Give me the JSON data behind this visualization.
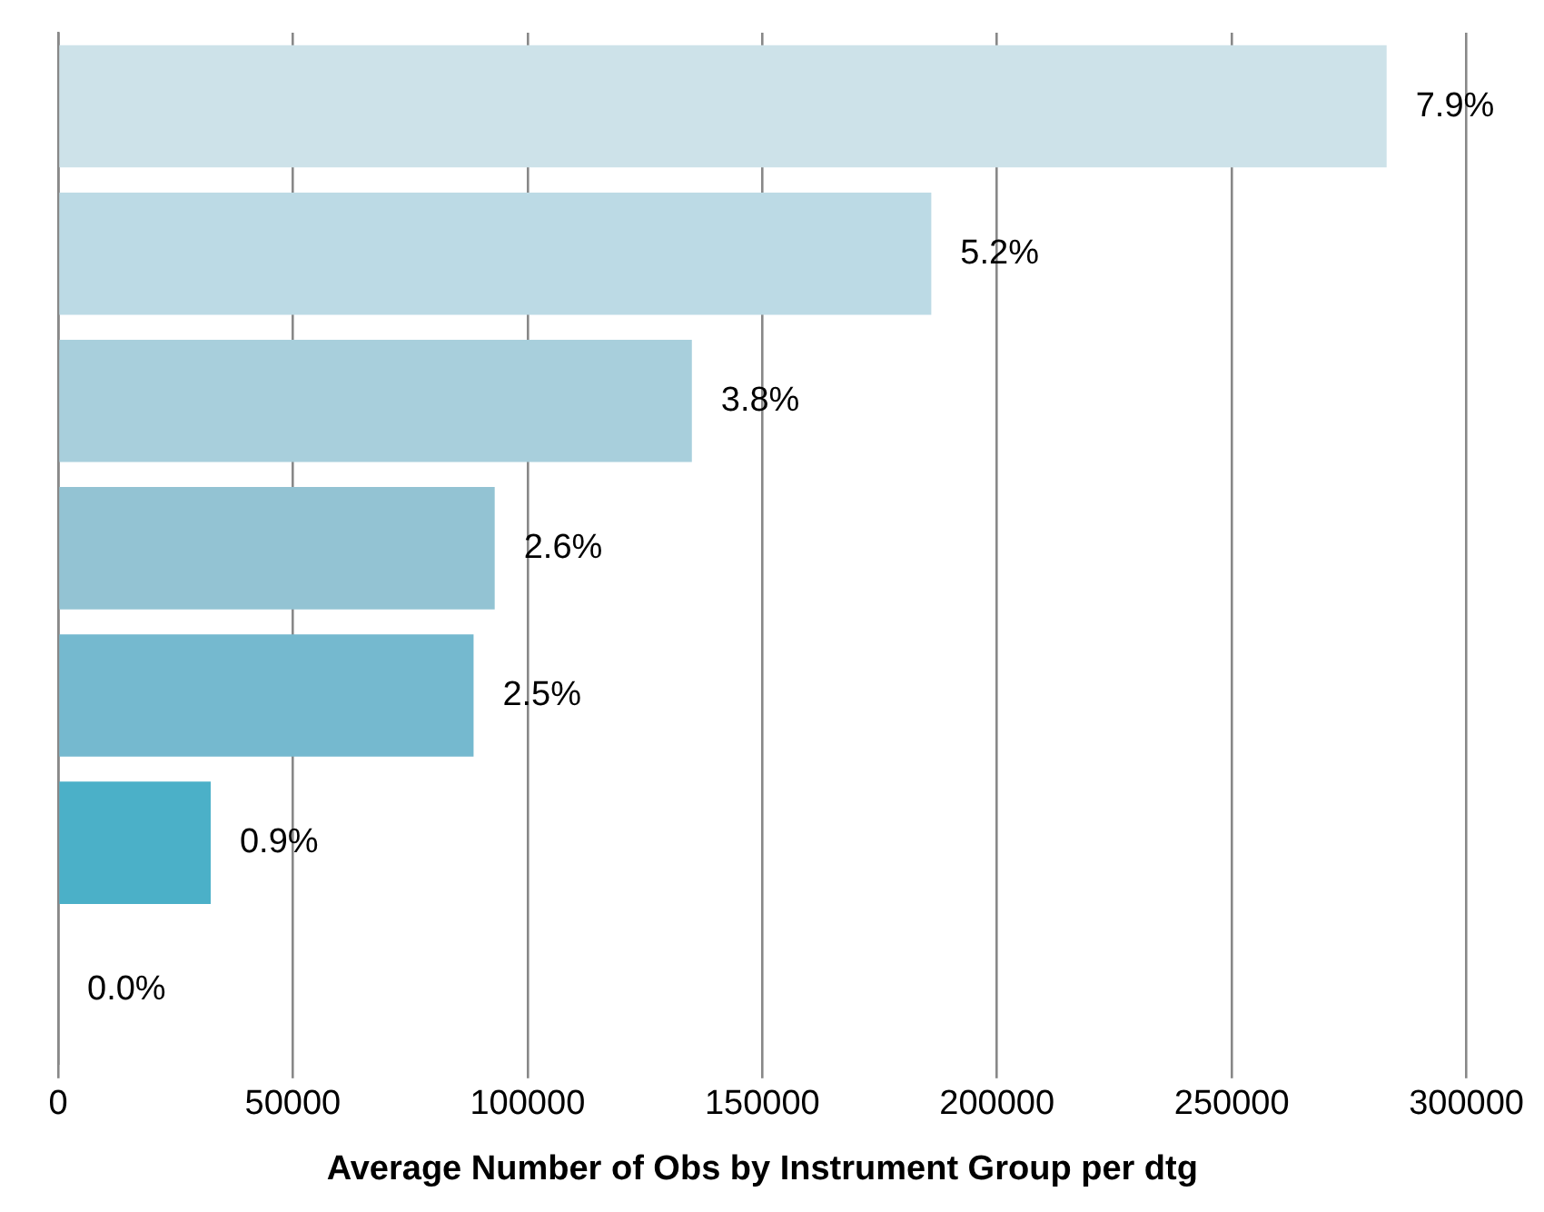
{
  "chart_data": {
    "type": "bar",
    "orientation": "horizontal",
    "xlabel": "Average Number of Obs by Instrument Group per dtg",
    "categories": [
      null,
      null,
      null,
      null,
      null,
      null,
      null
    ],
    "values": [
      283000,
      186000,
      135000,
      93000,
      88500,
      32500,
      0
    ],
    "colors": [
      "#cde2e9",
      "#bcdae5",
      "#a8cfdc",
      "#93c3d3",
      "#75b9cf",
      "#4bb0c8",
      "#3aa5c0"
    ],
    "annotations": [
      {
        "text": "7.9%",
        "x": 283000
      },
      {
        "text": "5.2%",
        "x": 186000
      },
      {
        "text": "3.8%",
        "x": 135000
      },
      {
        "text": "2.6%",
        "x": 93000
      },
      {
        "text": "2.5%",
        "x": 88500
      },
      {
        "text": "0.9%",
        "x": 32500
      },
      {
        "text": "0.0%",
        "x": 0
      }
    ],
    "xlim": [
      0,
      300000
    ],
    "xticks": [
      0,
      50000,
      100000,
      150000,
      200000,
      250000,
      300000
    ],
    "grid": "x",
    "tick_labels": "x",
    "legend": false
  }
}
